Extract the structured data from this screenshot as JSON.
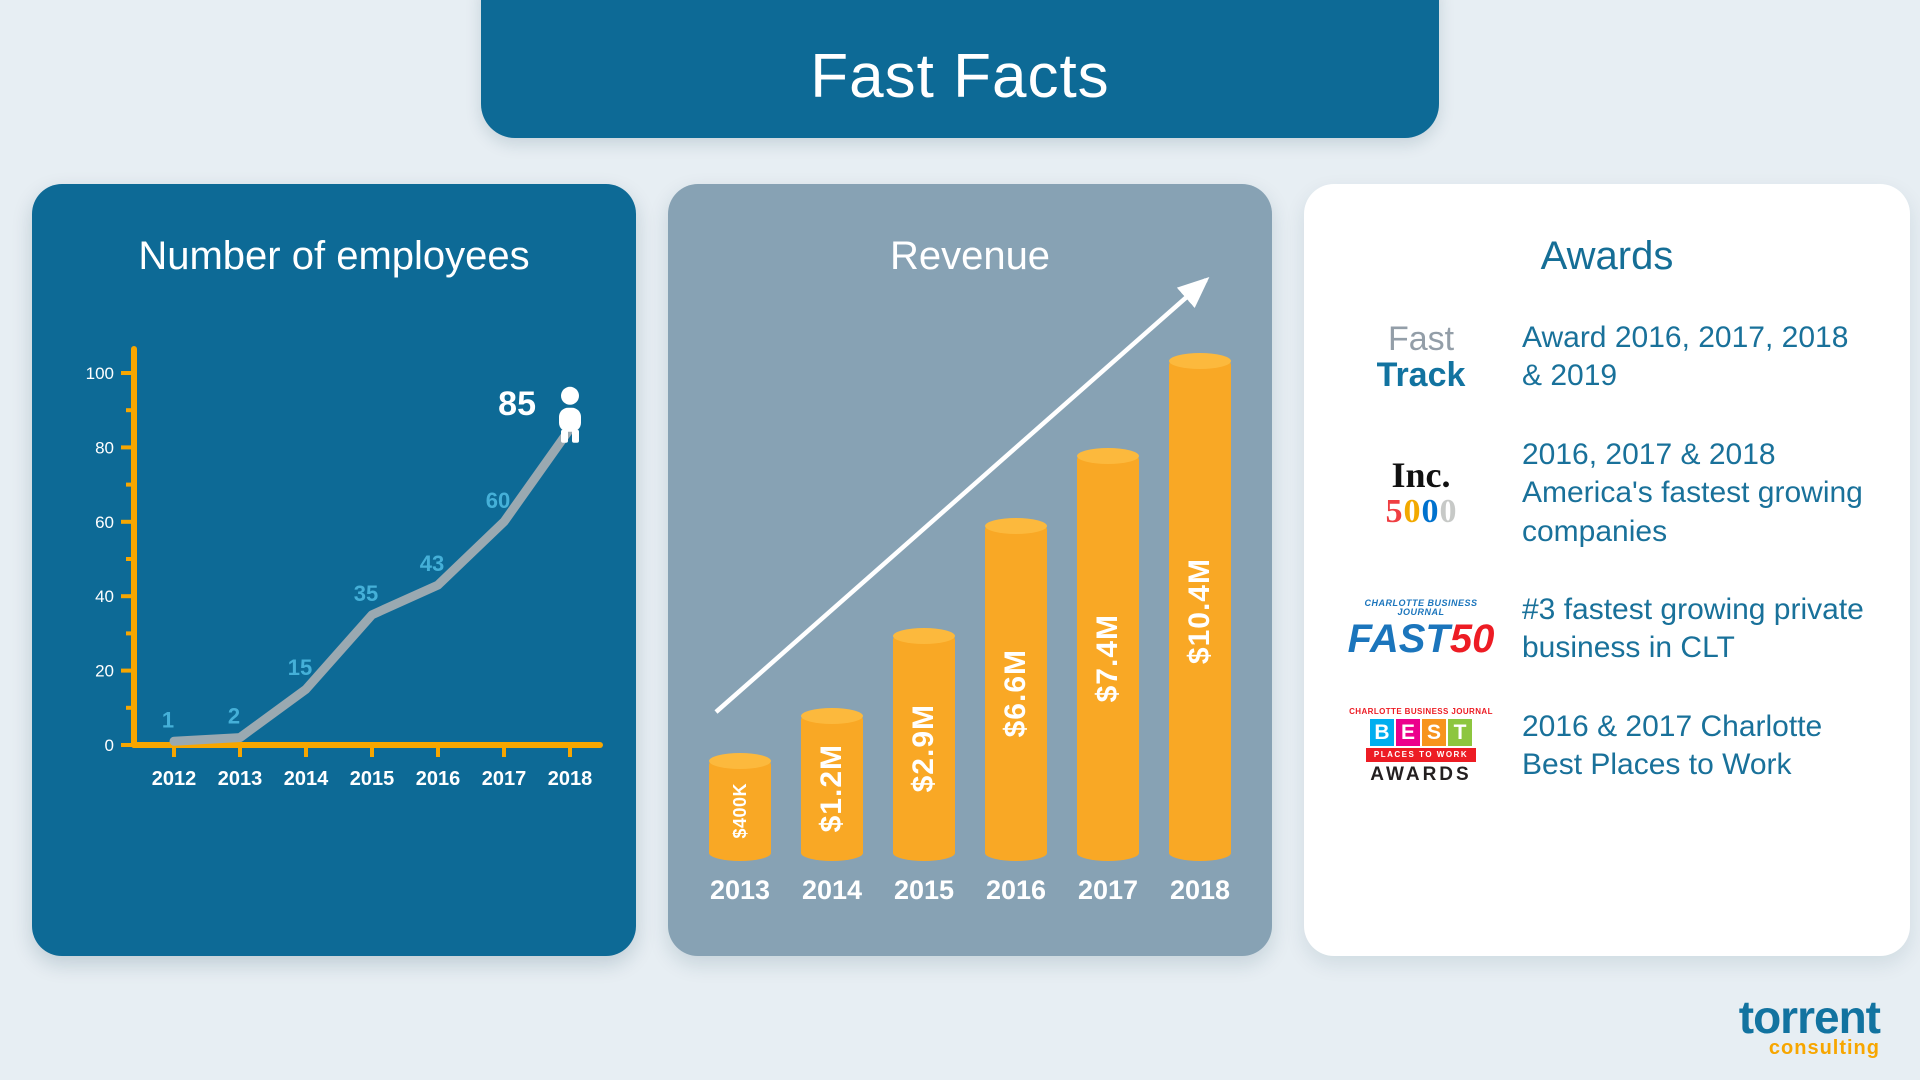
{
  "header": {
    "title": "Fast Facts"
  },
  "colors": {
    "background": "#e7eef3",
    "dark_teal": "#0d6a96",
    "gray_blue_panel": "#87a2b4",
    "accent_orange": "#f9a825",
    "axis_yellow": "#f7a600",
    "awards_text_teal": "#19719a",
    "point_label_blue": "#45b0d8",
    "line_gray": "#9aa9b1"
  },
  "chart_data": [
    {
      "type": "line",
      "title": "Number of employees",
      "x": [
        "2012",
        "2013",
        "2014",
        "2015",
        "2016",
        "2017",
        "2018"
      ],
      "values": [
        1,
        2,
        15,
        35,
        43,
        60,
        85
      ],
      "ylim": [
        0,
        100
      ],
      "yticks": [
        0,
        20,
        40,
        60,
        80,
        100
      ],
      "highlight_last_label": "85",
      "line_color": "#9aa9b1",
      "label_color": "#45b0d8",
      "axis_color": "#f7a600",
      "grid": "off",
      "legend": "none"
    },
    {
      "type": "bar",
      "title": "Revenue",
      "categories": [
        "2013",
        "2014",
        "2015",
        "2016",
        "2017",
        "2018"
      ],
      "value_labels": [
        "$400K",
        "$1.2M",
        "$2.9M",
        "$6.6M",
        "$7.4M",
        "$10.4M"
      ],
      "values_millions_usd": [
        0.4,
        1.2,
        2.9,
        6.6,
        7.4,
        10.4
      ],
      "bar_heights_rel": [
        0.2,
        0.29,
        0.45,
        0.67,
        0.81,
        1.0
      ],
      "bar_color": "#f9a825",
      "annotation": "upward trend arrow",
      "legend": "none"
    }
  ],
  "awards": {
    "title": "Awards",
    "items": [
      {
        "logo": "fast-track",
        "line1": "Fast",
        "line2": "Track",
        "text": "Award 2016, 2017, 2018 & 2019"
      },
      {
        "logo": "inc-5000",
        "line1": "Inc.",
        "digits": [
          "5",
          "0",
          "0",
          "0"
        ],
        "text": "2016, 2017 & 2018 America's fastest growing companies"
      },
      {
        "logo": "cbj-fast-50",
        "masthead": "CHARLOTTE BUSINESS JOURNAL",
        "word": "FAST",
        "number": "50",
        "text": "#3 fastest growing private business in CLT"
      },
      {
        "logo": "cbj-best-places-to-work",
        "masthead": "CHARLOTTE BUSINESS JOURNAL",
        "best_letters": [
          "B",
          "E",
          "S",
          "T"
        ],
        "strip": "PLACES TO WORK",
        "awards_word": "AWARDS",
        "text": "2016 & 2017 Charlotte Best Places to Work"
      }
    ]
  },
  "footer": {
    "brand": "torrent",
    "brand_sub": "consulting"
  }
}
